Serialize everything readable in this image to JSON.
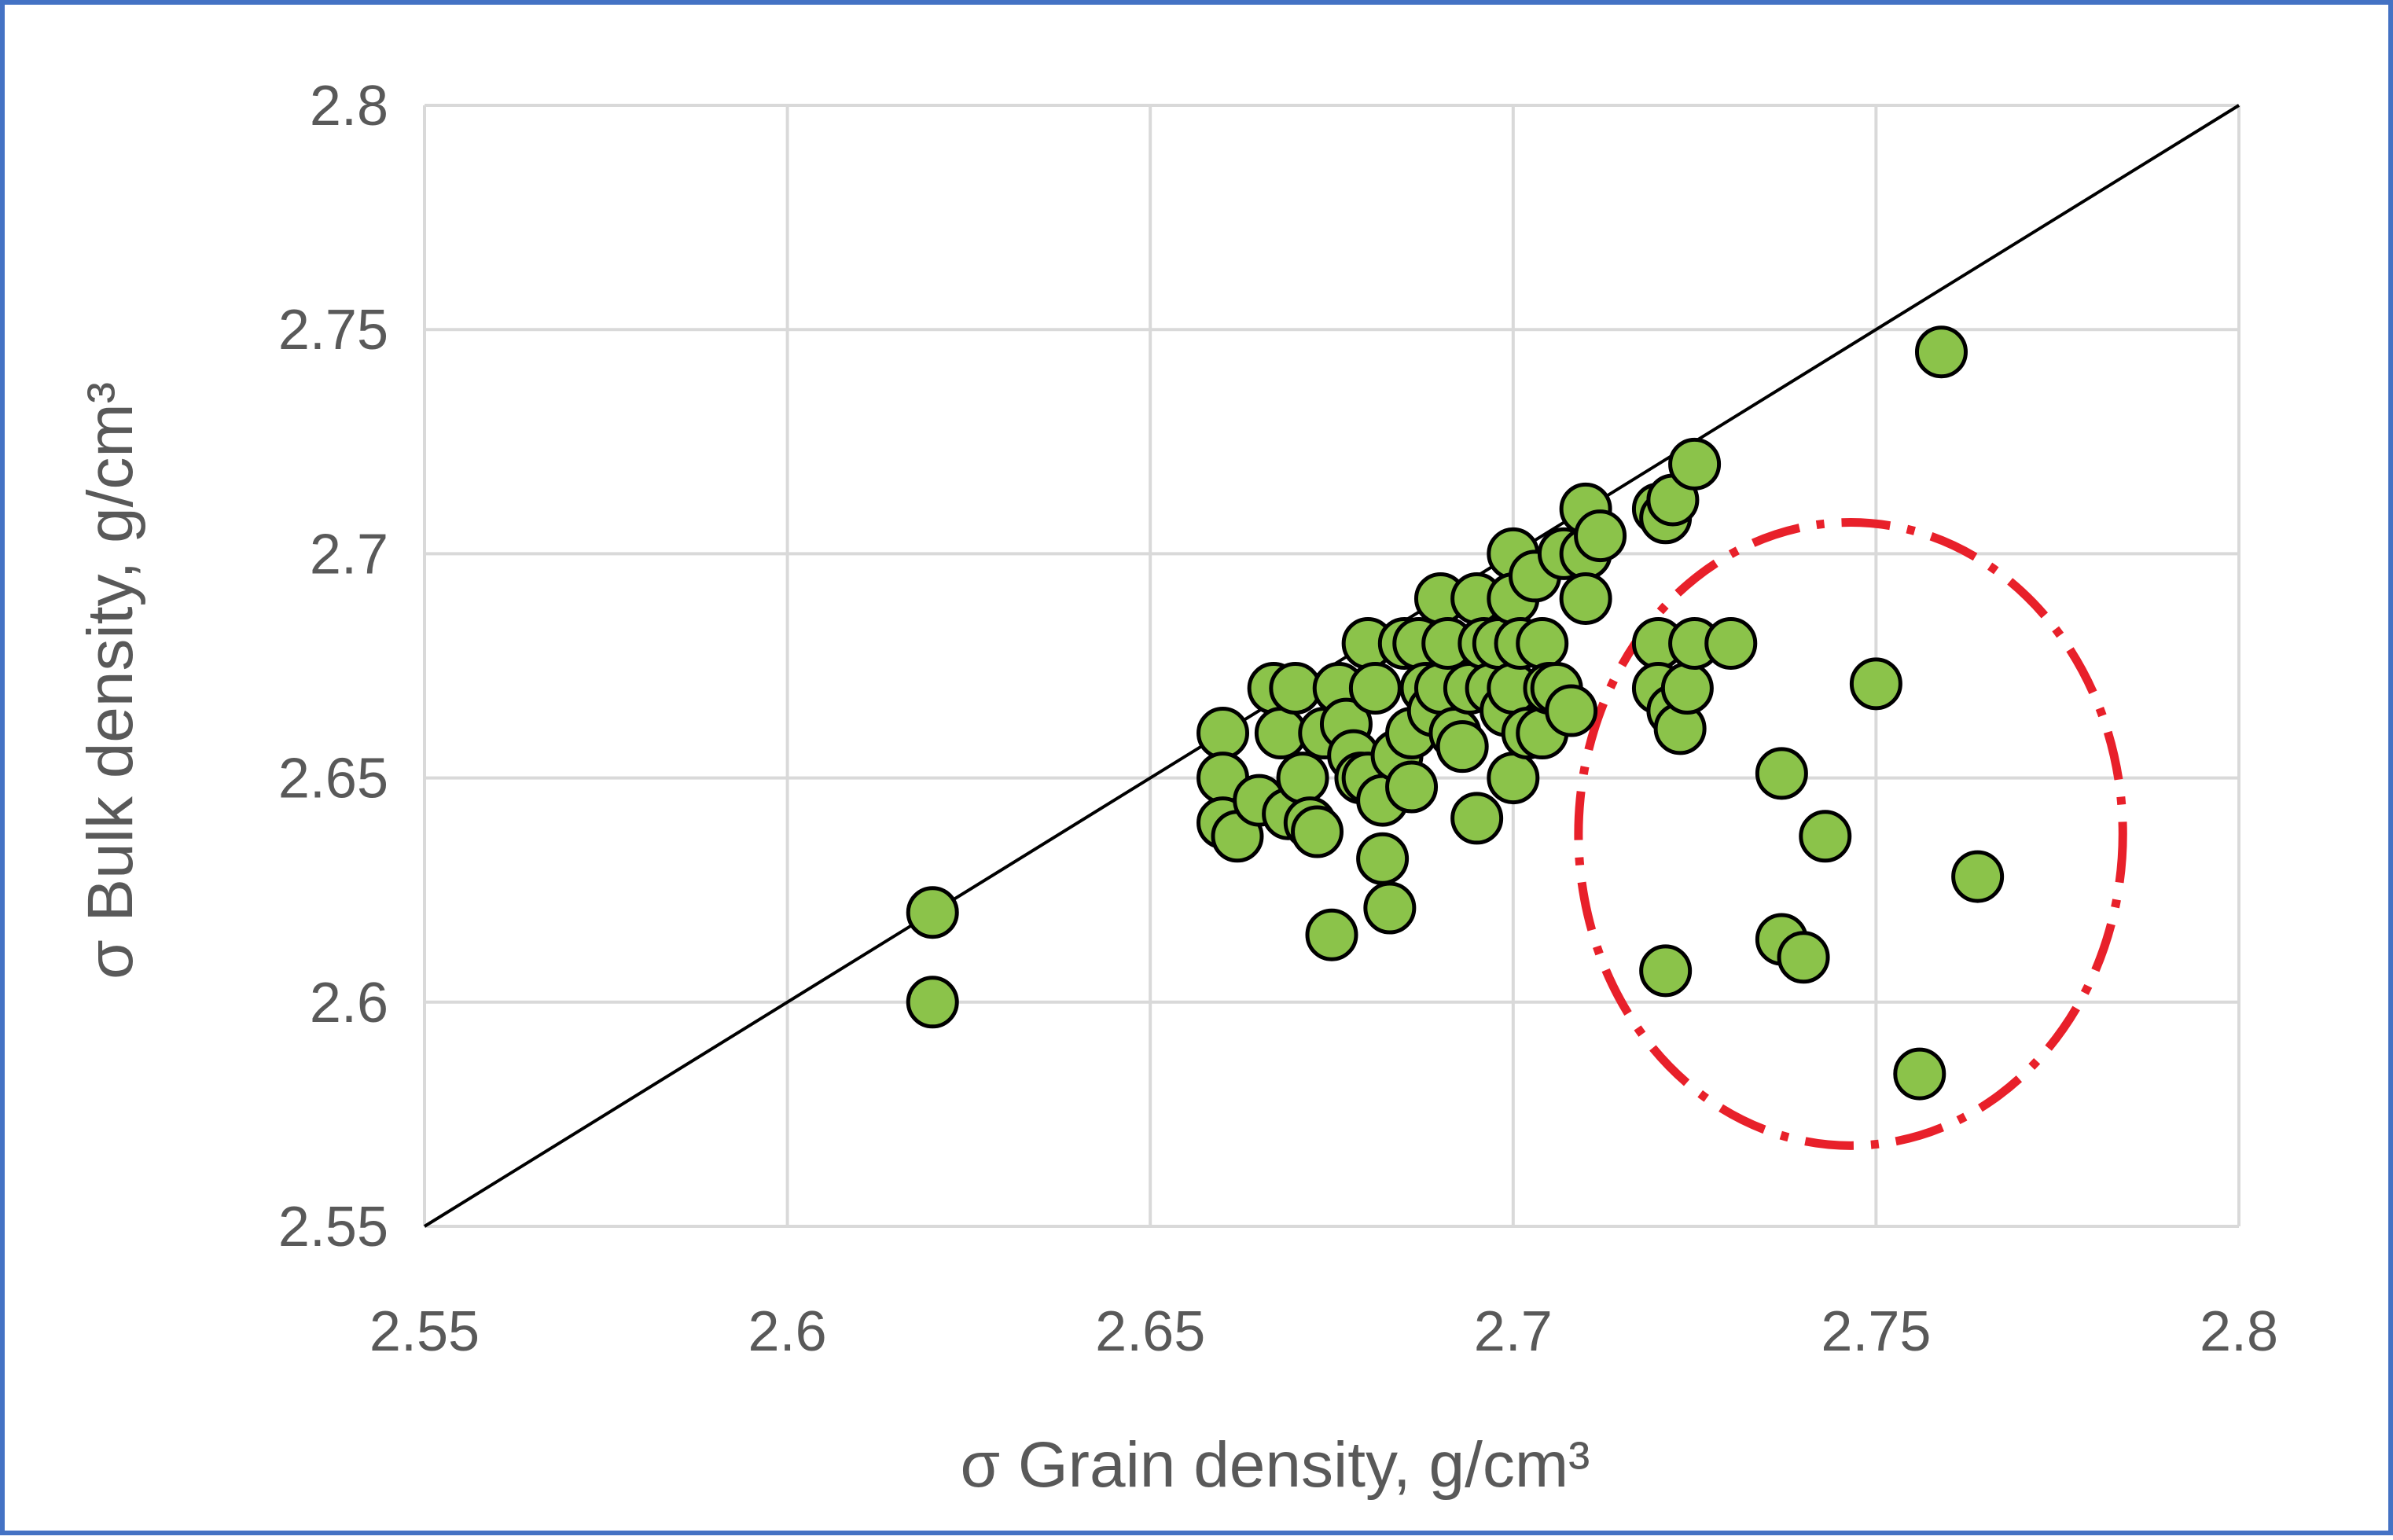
{
  "chart_data": {
    "type": "scatter",
    "title": "",
    "xlabel": "σ  Grain density, g/cm³",
    "ylabel": "σ Bulk density, g/cm³",
    "xlim": [
      2.55,
      2.8
    ],
    "ylim": [
      2.55,
      2.8
    ],
    "x_ticks": [
      "2.55",
      "2.6",
      "2.65",
      "2.7",
      "2.75",
      "2.8"
    ],
    "y_ticks": [
      "2.55",
      "2.6",
      "2.65",
      "2.7",
      "2.75",
      "2.8"
    ],
    "grid": true,
    "legend": "none",
    "reference_line": {
      "from": [
        2.55,
        2.55
      ],
      "to": [
        2.8,
        2.8
      ]
    },
    "highlight_ellipse": {
      "center": [
        2.7465,
        2.6375
      ],
      "rx": 0.0375,
      "ry": 0.0695,
      "style": "dash-dot",
      "color": "#e8202a"
    },
    "marker_color": "#8bc34a",
    "marker_edge": "#000000",
    "points": [
      [
        2.62,
        2.62
      ],
      [
        2.62,
        2.6
      ],
      [
        2.66,
        2.66
      ],
      [
        2.66,
        2.65
      ],
      [
        2.66,
        2.64
      ],
      [
        2.662,
        2.637
      ],
      [
        2.665,
        2.645
      ],
      [
        2.667,
        2.67
      ],
      [
        2.668,
        2.66
      ],
      [
        2.669,
        2.642
      ],
      [
        2.67,
        2.67
      ],
      [
        2.671,
        2.65
      ],
      [
        2.672,
        2.64
      ],
      [
        2.673,
        2.638
      ],
      [
        2.674,
        2.66
      ],
      [
        2.675,
        2.615
      ],
      [
        2.676,
        2.67
      ],
      [
        2.677,
        2.662
      ],
      [
        2.678,
        2.655
      ],
      [
        2.679,
        2.65
      ],
      [
        2.68,
        2.68
      ],
      [
        2.68,
        2.65
      ],
      [
        2.681,
        2.67
      ],
      [
        2.682,
        2.645
      ],
      [
        2.682,
        2.632
      ],
      [
        2.683,
        2.621
      ],
      [
        2.684,
        2.655
      ],
      [
        2.685,
        2.68
      ],
      [
        2.686,
        2.66
      ],
      [
        2.686,
        2.648
      ],
      [
        2.687,
        2.68
      ],
      [
        2.688,
        2.67
      ],
      [
        2.689,
        2.665
      ],
      [
        2.69,
        2.69
      ],
      [
        2.69,
        2.67
      ],
      [
        2.691,
        2.68
      ],
      [
        2.692,
        2.66
      ],
      [
        2.693,
        2.657
      ],
      [
        2.694,
        2.67
      ],
      [
        2.695,
        2.69
      ],
      [
        2.695,
        2.641
      ],
      [
        2.696,
        2.68
      ],
      [
        2.697,
        2.67
      ],
      [
        2.698,
        2.68
      ],
      [
        2.699,
        2.665
      ],
      [
        2.7,
        2.7
      ],
      [
        2.7,
        2.69
      ],
      [
        2.7,
        2.67
      ],
      [
        2.7,
        2.65
      ],
      [
        2.701,
        2.68
      ],
      [
        2.702,
        2.66
      ],
      [
        2.703,
        2.695
      ],
      [
        2.704,
        2.68
      ],
      [
        2.704,
        2.66
      ],
      [
        2.705,
        2.67
      ],
      [
        2.706,
        2.67
      ],
      [
        2.707,
        2.7
      ],
      [
        2.708,
        2.665
      ],
      [
        2.71,
        2.71
      ],
      [
        2.71,
        2.7
      ],
      [
        2.71,
        2.69
      ],
      [
        2.712,
        2.704
      ],
      [
        2.72,
        2.71
      ],
      [
        2.721,
        2.708
      ],
      [
        2.722,
        2.712
      ],
      [
        2.725,
        2.72
      ],
      [
        2.72,
        2.68
      ],
      [
        2.72,
        2.67
      ],
      [
        2.722,
        2.665
      ],
      [
        2.723,
        2.661
      ],
      [
        2.724,
        2.67
      ],
      [
        2.725,
        2.68
      ],
      [
        2.73,
        2.68
      ],
      [
        2.75,
        2.671
      ],
      [
        2.737,
        2.651
      ],
      [
        2.743,
        2.637
      ],
      [
        2.737,
        2.614
      ],
      [
        2.74,
        2.61
      ],
      [
        2.721,
        2.607
      ],
      [
        2.764,
        2.628
      ],
      [
        2.756,
        2.584
      ],
      [
        2.759,
        2.745
      ]
    ]
  }
}
